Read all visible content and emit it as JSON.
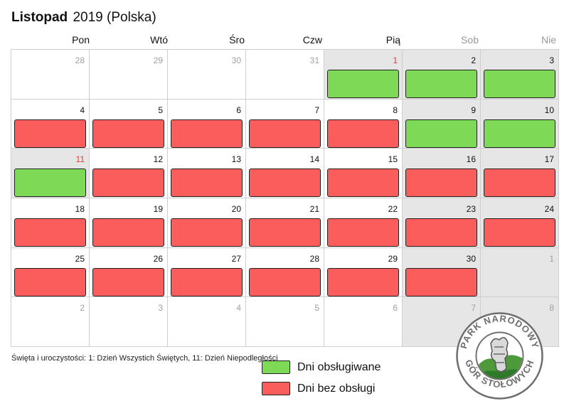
{
  "title": {
    "month": "Listopad",
    "rest": "2019 (Polska)"
  },
  "weekdays": [
    "Pon",
    "Wtó",
    "Śro",
    "Czw",
    "Pią",
    "Sob",
    "Nie"
  ],
  "colors": {
    "served": "#7ed957",
    "not_served": "#fb5c5c",
    "shaded": "#e6e6e6",
    "holiday_text": "#e03c3c"
  },
  "calendar": {
    "days": [
      {
        "num": "28",
        "other": true,
        "holiday": false,
        "shaded": false,
        "status": ""
      },
      {
        "num": "29",
        "other": true,
        "holiday": false,
        "shaded": false,
        "status": ""
      },
      {
        "num": "30",
        "other": true,
        "holiday": false,
        "shaded": false,
        "status": ""
      },
      {
        "num": "31",
        "other": true,
        "holiday": false,
        "shaded": false,
        "status": ""
      },
      {
        "num": "1",
        "other": false,
        "holiday": true,
        "shaded": true,
        "status": "served"
      },
      {
        "num": "2",
        "other": false,
        "holiday": false,
        "shaded": true,
        "status": "served"
      },
      {
        "num": "3",
        "other": false,
        "holiday": false,
        "shaded": true,
        "status": "served"
      },
      {
        "num": "4",
        "other": false,
        "holiday": false,
        "shaded": false,
        "status": "not_served"
      },
      {
        "num": "5",
        "other": false,
        "holiday": false,
        "shaded": false,
        "status": "not_served"
      },
      {
        "num": "6",
        "other": false,
        "holiday": false,
        "shaded": false,
        "status": "not_served"
      },
      {
        "num": "7",
        "other": false,
        "holiday": false,
        "shaded": false,
        "status": "not_served"
      },
      {
        "num": "8",
        "other": false,
        "holiday": false,
        "shaded": false,
        "status": "not_served"
      },
      {
        "num": "9",
        "other": false,
        "holiday": false,
        "shaded": true,
        "status": "served"
      },
      {
        "num": "10",
        "other": false,
        "holiday": false,
        "shaded": true,
        "status": "served"
      },
      {
        "num": "11",
        "other": false,
        "holiday": true,
        "shaded": true,
        "status": "served"
      },
      {
        "num": "12",
        "other": false,
        "holiday": false,
        "shaded": false,
        "status": "not_served"
      },
      {
        "num": "13",
        "other": false,
        "holiday": false,
        "shaded": false,
        "status": "not_served"
      },
      {
        "num": "14",
        "other": false,
        "holiday": false,
        "shaded": false,
        "status": "not_served"
      },
      {
        "num": "15",
        "other": false,
        "holiday": false,
        "shaded": false,
        "status": "not_served"
      },
      {
        "num": "16",
        "other": false,
        "holiday": false,
        "shaded": true,
        "status": "not_served"
      },
      {
        "num": "17",
        "other": false,
        "holiday": false,
        "shaded": true,
        "status": "not_served"
      },
      {
        "num": "18",
        "other": false,
        "holiday": false,
        "shaded": false,
        "status": "not_served"
      },
      {
        "num": "19",
        "other": false,
        "holiday": false,
        "shaded": false,
        "status": "not_served"
      },
      {
        "num": "20",
        "other": false,
        "holiday": false,
        "shaded": false,
        "status": "not_served"
      },
      {
        "num": "21",
        "other": false,
        "holiday": false,
        "shaded": false,
        "status": "not_served"
      },
      {
        "num": "22",
        "other": false,
        "holiday": false,
        "shaded": false,
        "status": "not_served"
      },
      {
        "num": "23",
        "other": false,
        "holiday": false,
        "shaded": true,
        "status": "not_served"
      },
      {
        "num": "24",
        "other": false,
        "holiday": false,
        "shaded": true,
        "status": "not_served"
      },
      {
        "num": "25",
        "other": false,
        "holiday": false,
        "shaded": false,
        "status": "not_served"
      },
      {
        "num": "26",
        "other": false,
        "holiday": false,
        "shaded": false,
        "status": "not_served"
      },
      {
        "num": "27",
        "other": false,
        "holiday": false,
        "shaded": false,
        "status": "not_served"
      },
      {
        "num": "28",
        "other": false,
        "holiday": false,
        "shaded": false,
        "status": "not_served"
      },
      {
        "num": "29",
        "other": false,
        "holiday": false,
        "shaded": false,
        "status": "not_served"
      },
      {
        "num": "30",
        "other": false,
        "holiday": false,
        "shaded": true,
        "status": "not_served"
      },
      {
        "num": "1",
        "other": true,
        "holiday": false,
        "shaded": true,
        "status": ""
      },
      {
        "num": "2",
        "other": true,
        "holiday": false,
        "shaded": false,
        "status": ""
      },
      {
        "num": "3",
        "other": true,
        "holiday": false,
        "shaded": false,
        "status": ""
      },
      {
        "num": "4",
        "other": true,
        "holiday": false,
        "shaded": false,
        "status": ""
      },
      {
        "num": "5",
        "other": true,
        "holiday": false,
        "shaded": false,
        "status": ""
      },
      {
        "num": "6",
        "other": true,
        "holiday": false,
        "shaded": false,
        "status": ""
      },
      {
        "num": "7",
        "other": true,
        "holiday": false,
        "shaded": true,
        "status": ""
      },
      {
        "num": "8",
        "other": true,
        "holiday": false,
        "shaded": true,
        "status": ""
      }
    ]
  },
  "footer_note": "Święta i uroczystości: 1: Dzień Wszystich Świętych, 11: Dzień Niepodległości",
  "legend": {
    "served_label": "Dni obsługiwane",
    "not_served_label": "Dni bez obsługi"
  },
  "logo": {
    "text_top": "PARK NARODOWY",
    "text_bottom": "GÓR STOŁOWYCH"
  }
}
